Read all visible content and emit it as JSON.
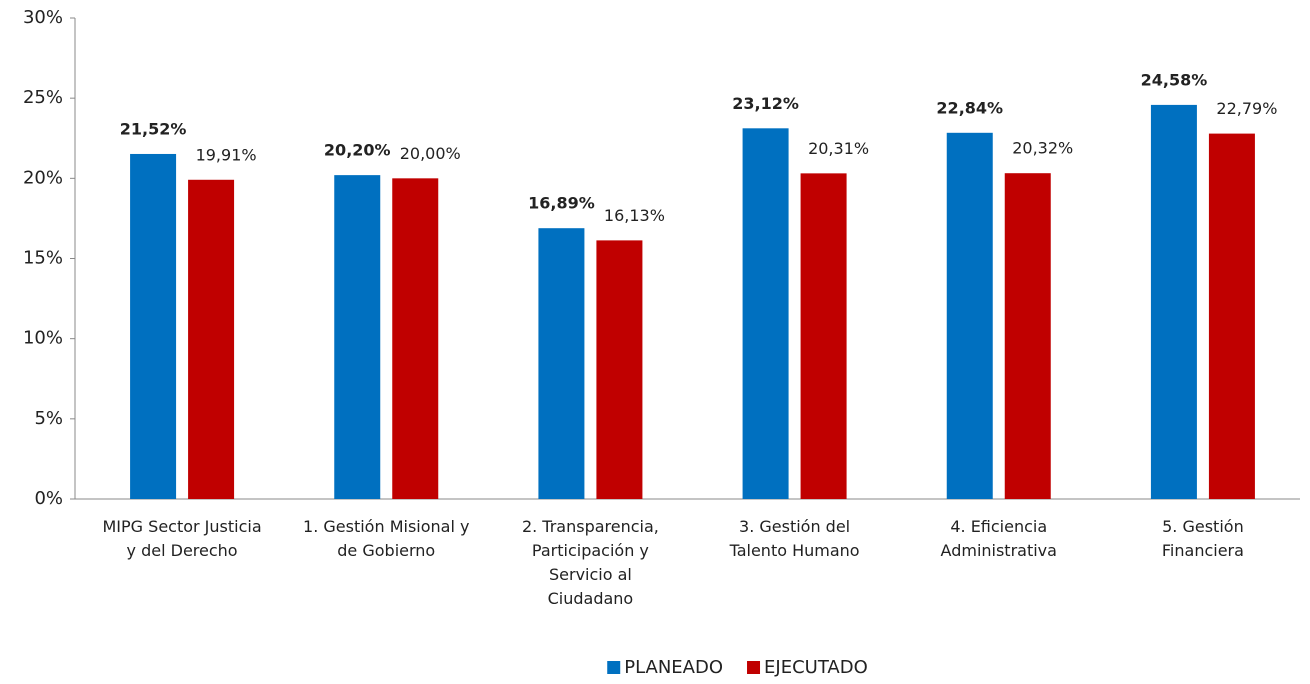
{
  "chart_data": {
    "type": "bar",
    "categories": [
      "MIPG Sector Justicia\ny del Derecho",
      "1. Gestión Misional y\nde Gobierno",
      "2. Transparencia,\nParticipación y\nServicio al\nCiudadano",
      "3. Gestión del\nTalento Humano",
      "4. Eficiencia\nAdministrativa",
      "5. Gestión\nFinanciera"
    ],
    "series": [
      {
        "name": "PLANEADO",
        "color": "#0070c0",
        "values": [
          21.52,
          20.2,
          16.89,
          23.12,
          22.84,
          24.58
        ],
        "value_labels": [
          "21,52%",
          "20,20%",
          "16,89%",
          "23,12%",
          "22,84%",
          "24,58%"
        ]
      },
      {
        "name": "EJECUTADO",
        "color": "#c00000",
        "values": [
          19.91,
          20.0,
          16.13,
          20.31,
          20.32,
          22.79
        ],
        "value_labels": [
          "19,91%",
          "20,00%",
          "16,13%",
          "20,31%",
          "20,32%",
          "22,79%"
        ]
      }
    ],
    "ylim": [
      0,
      30
    ],
    "yticks": [
      {
        "value": 0,
        "label": "0%"
      },
      {
        "value": 5,
        "label": "5%"
      },
      {
        "value": 10,
        "label": "10%"
      },
      {
        "value": 15,
        "label": "15%"
      },
      {
        "value": 20,
        "label": "20%"
      },
      {
        "value": 25,
        "label": "25%"
      },
      {
        "value": 30,
        "label": "30%"
      }
    ],
    "legend": "bottom"
  }
}
